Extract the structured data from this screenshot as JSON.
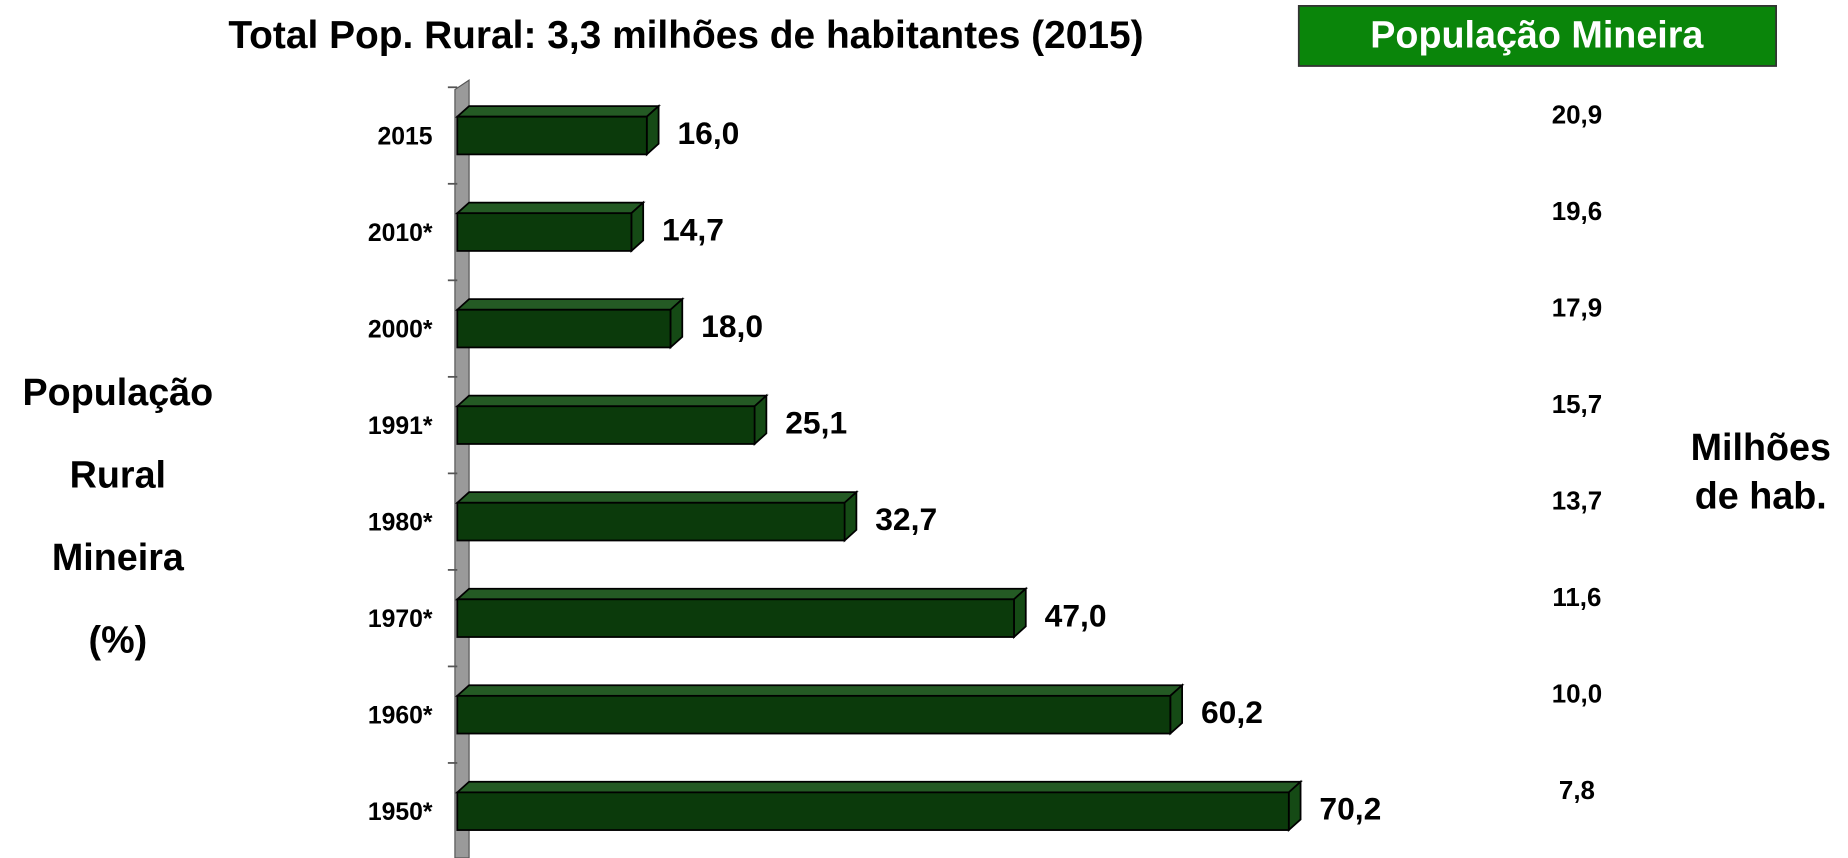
{
  "chart_data": {
    "type": "bar",
    "orientation": "horizontal",
    "title": "Total Pop. Rural:  3,3  milhões de habitantes (2015)",
    "y_axis_label": [
      "População",
      "Rural",
      "Mineira",
      "(%)"
    ],
    "categories": [
      "2015",
      "2010*",
      "2000*",
      "1991*",
      "1980*",
      "1970*",
      "1960*",
      "1950*"
    ],
    "values": [
      16.0,
      14.7,
      18.0,
      25.1,
      32.7,
      47.0,
      60.2,
      70.2
    ],
    "value_labels": [
      "16,0",
      "14,7",
      "18,0",
      "25,1",
      "32,7",
      "47,0",
      "60,2",
      "70,2"
    ],
    "color": "#0b3a0b",
    "xlim": [
      0,
      80
    ],
    "population": {
      "title": "População Mineira",
      "values": [
        20.9,
        19.6,
        17.9,
        15.7,
        13.7,
        11.6,
        10.0,
        7.8
      ],
      "value_labels": [
        "20,9",
        "19,6",
        "17,9",
        "15,7",
        "13,7",
        "11,6",
        "10,0",
        "7,8"
      ],
      "unit_label": [
        "Milhões",
        "de hab."
      ]
    }
  }
}
